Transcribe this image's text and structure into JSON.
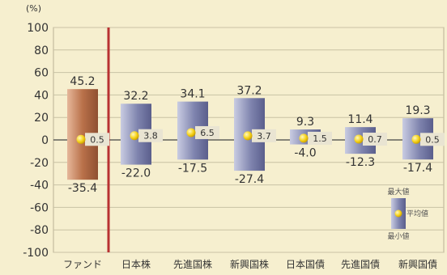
{
  "chart_data": {
    "type": "range-bar",
    "ylabel": "(%)",
    "ylim": [
      -100,
      100
    ],
    "yticks": [
      100,
      80,
      60,
      40,
      20,
      0,
      -20,
      -40,
      -60,
      -80,
      -100
    ],
    "grid": true,
    "categories": [
      "ファンド",
      "日本株",
      "先進国株",
      "新興国株",
      "日本国債",
      "先進国債",
      "新興国債"
    ],
    "max": [
      45.2,
      32.2,
      34.1,
      37.2,
      9.3,
      11.4,
      19.3
    ],
    "average": [
      0.5,
      3.8,
      6.5,
      3.7,
      1.5,
      0.7,
      0.5
    ],
    "min": [
      -35.4,
      -22.0,
      -17.5,
      -27.4,
      -4.0,
      -12.3,
      -17.4
    ],
    "max_labels": [
      "45.2",
      "32.2",
      "34.1",
      "37.2",
      "9.3",
      "11.4",
      "19.3"
    ],
    "avg_labels": [
      "0.5",
      "3.8",
      "6.5",
      "3.7",
      "1.5",
      "0.7",
      "0.5"
    ],
    "min_labels": [
      "-35.4",
      "-22.0",
      "-17.5",
      "-27.4",
      "-4.0",
      "-12.3",
      "-17.4"
    ],
    "legend": {
      "max": "最大値",
      "average": "平均値",
      "min": "最小値",
      "placement": "bottom-right"
    },
    "colors": {
      "fund_bar": "#c98a63",
      "asset_bar": "#7f84ae",
      "average_marker": "#f5d21a",
      "divider": "#b83232",
      "grid": "#c9c2a4",
      "background": "#f6efcf"
    }
  }
}
